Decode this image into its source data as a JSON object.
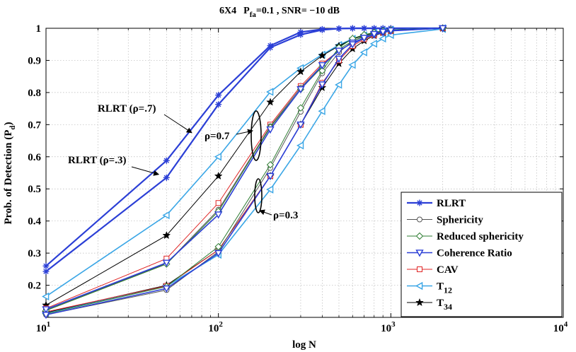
{
  "chart_data": {
    "type": "line",
    "title": {
      "prefix": "6X4",
      "p": "P",
      "p_sub": "fa",
      "rest": "=0.1 , SNR= −10 dB"
    },
    "xlabel": "log N",
    "ylabel": {
      "main": "Prob. of Detection (P",
      "sub": "d",
      "close": ")"
    },
    "xscale": "log",
    "xlim": [
      10,
      10000
    ],
    "ylim": [
      0.1,
      1.0
    ],
    "grid": true,
    "xticks": [
      {
        "value": 10,
        "base": "10",
        "exp": "1"
      },
      {
        "value": 100,
        "base": "10",
        "exp": "2"
      },
      {
        "value": 1000,
        "base": "10",
        "exp": "3"
      },
      {
        "value": 10000,
        "base": "10",
        "exp": "4"
      }
    ],
    "yticks": [
      "0.2",
      "0.3",
      "0.4",
      "0.5",
      "0.6",
      "0.7",
      "0.8",
      "0.9",
      "1"
    ],
    "series": [
      {
        "key": "rlrt_7",
        "name": "RLRT",
        "color": "#2b3fd6",
        "marker": "asterisk",
        "width": 2.2,
        "x": [
          10,
          50,
          100,
          200,
          300,
          400,
          500,
          600,
          700,
          800,
          900,
          1000,
          2000
        ],
        "y": [
          0.26,
          0.588,
          0.792,
          0.946,
          0.988,
          0.997,
          0.999,
          1.0,
          1.0,
          1.0,
          1.0,
          1.0,
          1.0
        ]
      },
      {
        "key": "rlrt_3",
        "name": "RLRT",
        "color": "#2b3fd6",
        "marker": "asterisk",
        "width": 2.2,
        "x": [
          10,
          50,
          100,
          200,
          300,
          400,
          500,
          600,
          700,
          800,
          900,
          1000,
          2000
        ],
        "y": [
          0.243,
          0.535,
          0.763,
          0.94,
          0.98,
          0.995,
          0.999,
          1.0,
          1.0,
          1.0,
          1.0,
          1.0,
          1.0
        ]
      },
      {
        "key": "t12_7",
        "name": "T12",
        "color": "#3aa6e6",
        "marker": "tri-left",
        "width": 1.6,
        "x": [
          10,
          50,
          100,
          200,
          300,
          400,
          500,
          600,
          700,
          800,
          900,
          1000,
          2000
        ],
        "y": [
          0.165,
          0.418,
          0.6,
          0.802,
          0.876,
          0.918,
          0.948,
          0.967,
          0.978,
          0.986,
          0.991,
          0.995,
          1.0
        ]
      },
      {
        "key": "t12_3",
        "name": "T12",
        "color": "#3aa6e6",
        "marker": "tri-left",
        "width": 1.6,
        "x": [
          10,
          50,
          100,
          200,
          300,
          400,
          500,
          600,
          700,
          800,
          900,
          1000,
          2000
        ],
        "y": [
          0.113,
          0.197,
          0.295,
          0.498,
          0.635,
          0.742,
          0.824,
          0.886,
          0.925,
          0.952,
          0.968,
          0.979,
          0.998
        ]
      },
      {
        "key": "t34_7",
        "name": "T34",
        "color": "#000000",
        "marker": "star",
        "width": 1.0,
        "x": [
          10,
          50,
          100,
          200,
          300,
          400,
          500,
          600,
          700,
          800,
          900,
          1000,
          2000
        ],
        "y": [
          0.138,
          0.355,
          0.54,
          0.77,
          0.865,
          0.915,
          0.945,
          0.966,
          0.978,
          0.986,
          0.991,
          0.995,
          1.0
        ]
      },
      {
        "key": "t34_3",
        "name": "T34",
        "color": "#000000",
        "marker": "star",
        "width": 1.0,
        "x": [
          10,
          50,
          100,
          200,
          300,
          400,
          500,
          600,
          700,
          800,
          900,
          1000,
          2000
        ],
        "y": [
          0.115,
          0.2,
          0.31,
          0.54,
          0.7,
          0.815,
          0.89,
          0.936,
          0.961,
          0.977,
          0.986,
          0.992,
          1.0
        ]
      },
      {
        "key": "cav_7",
        "name": "CAV",
        "color": "#e02424",
        "marker": "square",
        "width": 1.0,
        "x": [
          10,
          50,
          100,
          200,
          300,
          400,
          500,
          600,
          700,
          800,
          900,
          1000,
          2000
        ],
        "y": [
          0.128,
          0.283,
          0.456,
          0.7,
          0.82,
          0.89,
          0.93,
          0.955,
          0.97,
          0.98,
          0.987,
          0.992,
          1.0
        ]
      },
      {
        "key": "cav_3",
        "name": "CAV",
        "color": "#e02424",
        "marker": "square",
        "width": 1.0,
        "x": [
          10,
          50,
          100,
          200,
          300,
          400,
          500,
          600,
          700,
          800,
          900,
          1000,
          2000
        ],
        "y": [
          0.117,
          0.198,
          0.31,
          0.54,
          0.7,
          0.83,
          0.9,
          0.945,
          0.966,
          0.979,
          0.987,
          0.992,
          1.0
        ]
      },
      {
        "key": "sph_7",
        "name": "Sphericity",
        "color": "#555555",
        "marker": "circle",
        "width": 1.0,
        "x": [
          10,
          50,
          100,
          200,
          300,
          400,
          500,
          600,
          700,
          800,
          900,
          1000,
          2000
        ],
        "y": [
          0.122,
          0.268,
          0.435,
          0.695,
          0.815,
          0.885,
          0.93,
          0.955,
          0.97,
          0.98,
          0.987,
          0.992,
          1.0
        ]
      },
      {
        "key": "sph_3",
        "name": "Sphericity",
        "color": "#555555",
        "marker": "circle",
        "width": 1.0,
        "x": [
          10,
          50,
          100,
          200,
          300,
          400,
          500,
          600,
          700,
          800,
          900,
          1000,
          2000
        ],
        "y": [
          0.108,
          0.185,
          0.305,
          0.565,
          0.74,
          0.86,
          0.925,
          0.96,
          0.976,
          0.985,
          0.99,
          0.994,
          1.0
        ]
      },
      {
        "key": "rsph_7",
        "name": "Reduced sphericity",
        "color": "#2e7d32",
        "marker": "diamond",
        "width": 1.0,
        "x": [
          10,
          50,
          100,
          200,
          300,
          400,
          500,
          600,
          700,
          800,
          900,
          1000,
          2000
        ],
        "y": [
          0.121,
          0.266,
          0.43,
          0.692,
          0.81,
          0.88,
          0.935,
          0.96,
          0.974,
          0.983,
          0.989,
          0.993,
          1.0
        ]
      },
      {
        "key": "rsph_3",
        "name": "Reduced sphericity",
        "color": "#2e7d32",
        "marker": "diamond",
        "width": 1.0,
        "x": [
          10,
          50,
          100,
          200,
          300,
          400,
          500,
          600,
          700,
          800,
          900,
          1000,
          2000
        ],
        "y": [
          0.111,
          0.196,
          0.32,
          0.575,
          0.752,
          0.868,
          0.94,
          0.968,
          0.98,
          0.987,
          0.992,
          0.995,
          1.0
        ]
      },
      {
        "key": "coh_7",
        "name": "Coherence Ratio",
        "color": "#2b3fd6",
        "marker": "tri-down",
        "width": 1.6,
        "x": [
          10,
          50,
          100,
          200,
          300,
          400,
          500,
          600,
          700,
          800,
          900,
          1000,
          2000
        ],
        "y": [
          0.125,
          0.27,
          0.42,
          0.685,
          0.81,
          0.885,
          0.93,
          0.955,
          0.97,
          0.98,
          0.987,
          0.992,
          1.0
        ]
      },
      {
        "key": "coh_3",
        "name": "Coherence Ratio",
        "color": "#2b3fd6",
        "marker": "tri-down",
        "width": 1.6,
        "x": [
          10,
          50,
          100,
          200,
          300,
          400,
          500,
          600,
          700,
          800,
          900,
          1000,
          2000
        ],
        "y": [
          0.108,
          0.19,
          0.3,
          0.54,
          0.7,
          0.825,
          0.905,
          0.95,
          0.97,
          0.982,
          0.989,
          0.993,
          1.0
        ]
      }
    ],
    "legend": {
      "placement": "bottom-right",
      "items": [
        {
          "label": "RLRT",
          "sub": "",
          "color": "#2b3fd6",
          "marker": "asterisk",
          "width": 2.2
        },
        {
          "label": "Sphericity",
          "sub": "",
          "color": "#555555",
          "marker": "circle",
          "width": 1.0
        },
        {
          "label": "Reduced sphericity",
          "sub": "",
          "color": "#2e7d32",
          "marker": "diamond",
          "width": 1.0
        },
        {
          "label": "Coherence Ratio",
          "sub": "",
          "color": "#2b3fd6",
          "marker": "tri-down",
          "width": 1.6
        },
        {
          "label": "CAV",
          "sub": "",
          "color": "#e02424",
          "marker": "square",
          "width": 1.0
        },
        {
          "label": "T",
          "sub": "12",
          "color": "#3aa6e6",
          "marker": "tri-left",
          "width": 1.6
        },
        {
          "label": "T",
          "sub": "34",
          "color": "#000000",
          "marker": "star",
          "width": 1.0
        }
      ]
    },
    "annotations": {
      "rlrt7": "RLRT (ρ=.7)",
      "rlrt3": "RLRT (ρ=.3)",
      "rho7": "ρ=0.7",
      "rho3": "ρ=0.3"
    }
  }
}
